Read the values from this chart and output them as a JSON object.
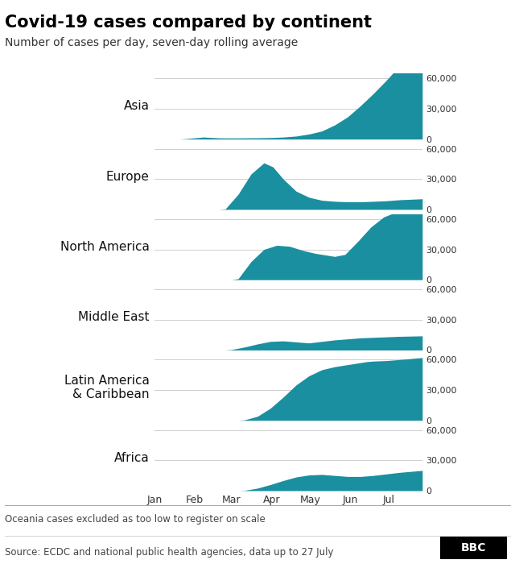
{
  "title": "Covid-19 cases compared by continent",
  "subtitle": "Number of cases per day, seven-day rolling average",
  "footer_note": "Oceania cases excluded as too low to register on scale",
  "source": "Source: ECDC and national public health agencies, data up to 27 July",
  "fill_color": "#1a8fa0",
  "background_color": "#ffffff",
  "continents": [
    "Asia",
    "Europe",
    "North America",
    "Middle East",
    "Latin America\n& Caribbean",
    "Africa"
  ],
  "x_tick_labels": [
    "Jan",
    "Feb",
    "Mar",
    "Apr",
    "May",
    "Jun",
    "Jul"
  ],
  "x_ticks": [
    0,
    31,
    60,
    91,
    121,
    152,
    182
  ],
  "total_days": 209,
  "ylim": [
    0,
    65000
  ],
  "yticks": [
    0,
    30000,
    60000
  ],
  "ytick_labels": [
    "0",
    "30,000",
    "60,000"
  ],
  "title_fontsize": 15,
  "subtitle_fontsize": 10,
  "label_fontsize": 11,
  "tick_fontsize": 8,
  "footer_fontsize": 8.5
}
